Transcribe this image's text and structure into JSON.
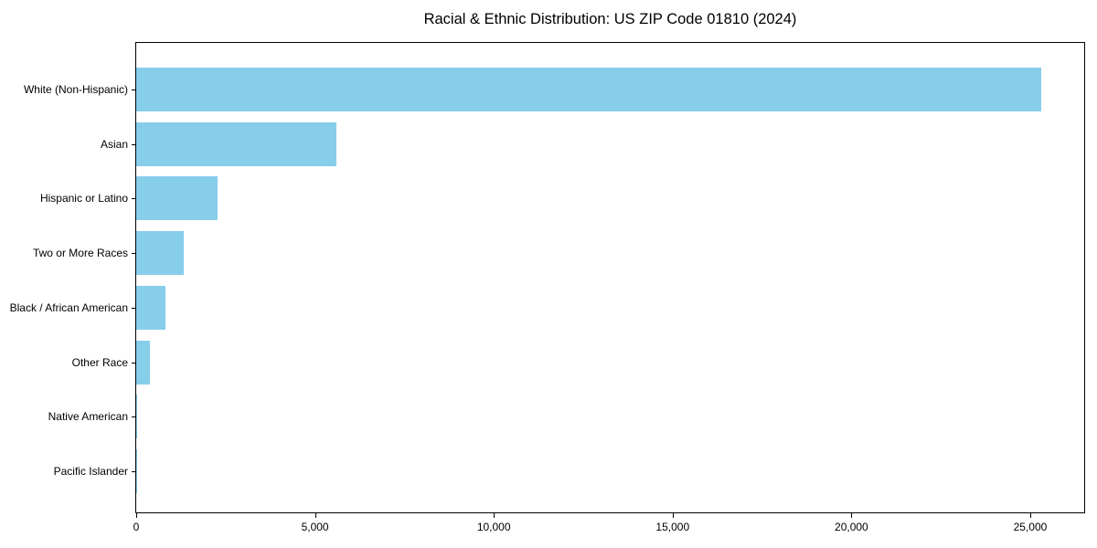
{
  "chart_data": {
    "type": "bar",
    "orientation": "horizontal",
    "title": "Racial & Ethnic Distribution: US ZIP Code 01810 (2024)",
    "categories": [
      "White (Non-Hispanic)",
      "Asian",
      "Hispanic or Latino",
      "Two or More Races",
      "Black / African American",
      "Other Race",
      "Native American",
      "Pacific Islander"
    ],
    "values": [
      25300,
      5600,
      2270,
      1330,
      820,
      380,
      20,
      10
    ],
    "xlabel": "",
    "ylabel": "",
    "xlim": [
      0,
      26560
    ],
    "xticks": [
      {
        "value": 0,
        "label": "0"
      },
      {
        "value": 5000,
        "label": "5,000"
      },
      {
        "value": 10000,
        "label": "10,000"
      },
      {
        "value": 15000,
        "label": "15,000"
      },
      {
        "value": 20000,
        "label": "20,000"
      },
      {
        "value": 25000,
        "label": "25,000"
      }
    ],
    "bar_color": "#87CEEB",
    "background_color": "#ffffff",
    "spine_color": "#000000",
    "grid": false,
    "legend": false
  }
}
